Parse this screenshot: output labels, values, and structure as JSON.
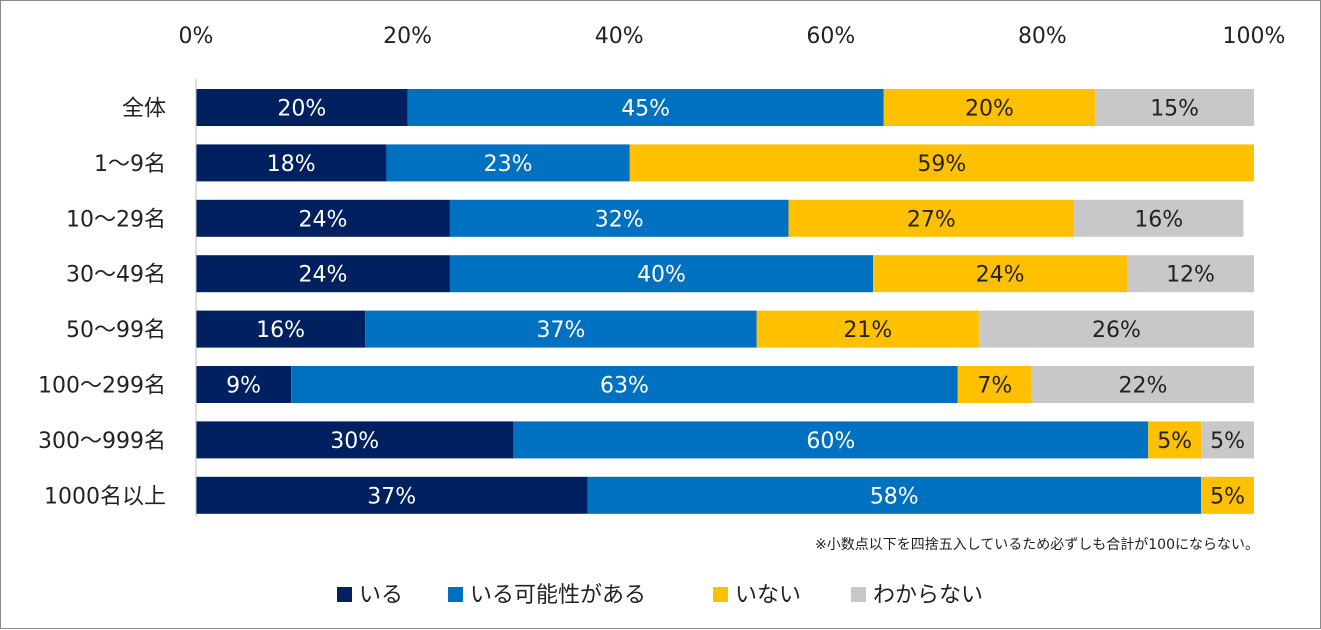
{
  "chart_data": {
    "type": "bar",
    "orientation": "horizontal",
    "stacked": true,
    "percent_stacked": true,
    "xlim": [
      0,
      100
    ],
    "x_ticks": [
      "0%",
      "20%",
      "40%",
      "60%",
      "80%",
      "100%"
    ],
    "x_tick_values": [
      0,
      20,
      40,
      60,
      80,
      100
    ],
    "categories": [
      "全体",
      "1～9名",
      "10～29名",
      "30～49名",
      "50～99名",
      "100～299名",
      "300～999名",
      "1000名以上"
    ],
    "series": [
      {
        "name": "いる",
        "color": "#002060",
        "label_color": "#ffffff",
        "values": [
          20,
          18,
          24,
          24,
          16,
          9,
          30,
          37
        ]
      },
      {
        "name": "いる可能性がある",
        "color": "#0070c0",
        "label_color": "#ffffff",
        "values": [
          45,
          23,
          32,
          40,
          37,
          63,
          60,
          58
        ]
      },
      {
        "name": "いない",
        "color": "#ffc000",
        "label_color": "#222222",
        "values": [
          20,
          59,
          27,
          24,
          21,
          7,
          5,
          5
        ]
      },
      {
        "name": "わからない",
        "color": "#c8c8c8",
        "label_color": "#222222",
        "values": [
          15,
          0,
          16,
          12,
          26,
          22,
          5,
          0
        ]
      }
    ],
    "data_labels": [
      [
        "20%",
        "45%",
        "20%",
        "15%"
      ],
      [
        "18%",
        "23%",
        "59%",
        ""
      ],
      [
        "24%",
        "32%",
        "27%",
        "16%"
      ],
      [
        "24%",
        "40%",
        "24%",
        "12%"
      ],
      [
        "16%",
        "37%",
        "21%",
        "26%"
      ],
      [
        "9%",
        "63%",
        "7%",
        "22%"
      ],
      [
        "30%",
        "60%",
        "5%",
        "5%"
      ],
      [
        "37%",
        "58%",
        "5%",
        ""
      ]
    ],
    "note": "※小数点以下を四捨五入しているため必ずしも合計が100にならない。",
    "legend_position": "bottom",
    "grid": false
  }
}
